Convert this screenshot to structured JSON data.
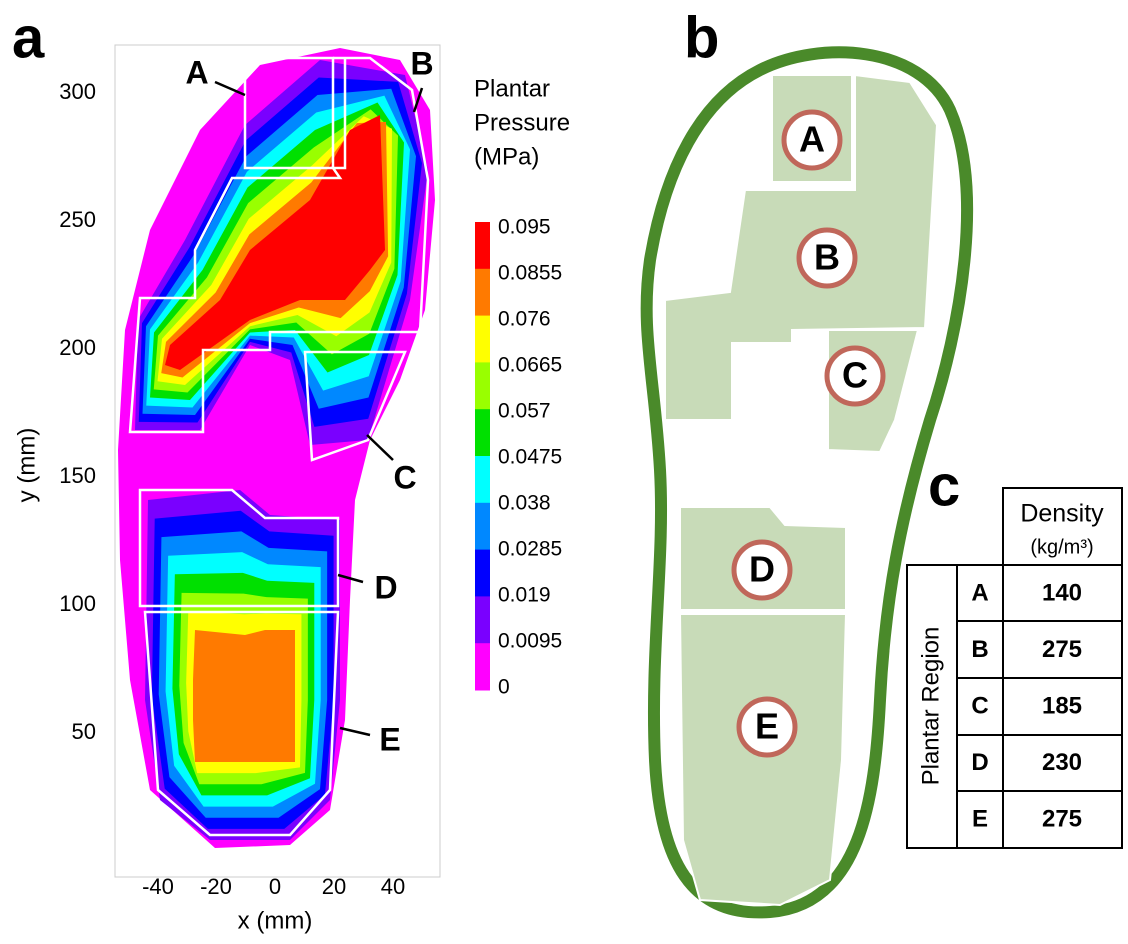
{
  "panel_a": {
    "label": "a",
    "y_axis_label": "y (mm)",
    "x_axis_label": "x (mm)",
    "x_ticks": [
      "-40",
      "-20",
      "0",
      "20",
      "40"
    ],
    "y_ticks": [
      "300",
      "250",
      "200",
      "150",
      "100",
      "50"
    ],
    "colorbar": {
      "title": [
        "Plantar",
        "Pressure",
        "(MPa)"
      ],
      "labels": [
        "0.095",
        "0.0855",
        "0.076",
        "0.0665",
        "0.057",
        "0.0475",
        "0.038",
        "0.0285",
        "0.019",
        "0.0095",
        "0"
      ],
      "colors": [
        "#ff0000",
        "#ff7a00",
        "#ffff00",
        "#99ff00",
        "#00e000",
        "#00ffff",
        "#0088ff",
        "#0000ff",
        "#7a00ff",
        "#ff00ff"
      ]
    },
    "regions": [
      "A",
      "B",
      "C",
      "D",
      "E"
    ]
  },
  "panel_b": {
    "label": "b",
    "regions": [
      "A",
      "B",
      "C",
      "D",
      "E"
    ]
  },
  "panel_c": {
    "label": "c",
    "header": [
      "Density",
      "(kg/m³)"
    ],
    "row_header": "Plantar Region",
    "rows": [
      [
        "A",
        "140"
      ],
      [
        "B",
        "275"
      ],
      [
        "C",
        "185"
      ],
      [
        "D",
        "230"
      ],
      [
        "E",
        "275"
      ]
    ]
  }
}
